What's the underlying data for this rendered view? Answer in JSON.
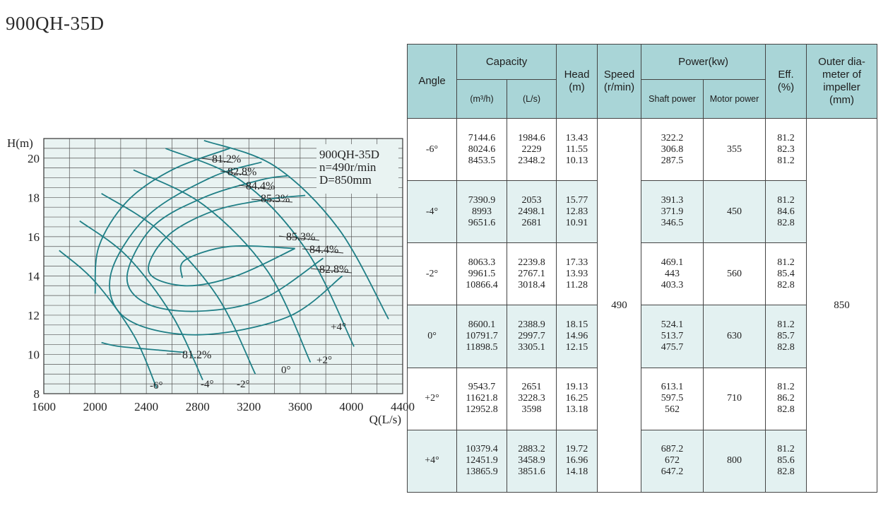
{
  "title": "900QH-35D",
  "chart_data": {
    "type": "line",
    "xlabel": "Q(L/s)",
    "ylabel": "H(m)",
    "xlim": [
      1600,
      4400
    ],
    "ylim": [
      8,
      21
    ],
    "x_ticks": [
      1600,
      2000,
      2400,
      2800,
      3200,
      3600,
      4000,
      4400
    ],
    "y_ticks": [
      8,
      10,
      12,
      14,
      16,
      18,
      20
    ],
    "grid": true,
    "annotation": [
      "900QH-35D",
      "n=490r/min",
      "D=850mm"
    ],
    "series": [
      {
        "name": "-6°",
        "points": [
          [
            1720,
            15.3
          ],
          [
            2000,
            13.7
          ],
          [
            2300,
            11.0
          ],
          [
            2480,
            8.3
          ]
        ]
      },
      {
        "name": "-4°",
        "points": [
          [
            1880,
            16.8
          ],
          [
            2250,
            15.0
          ],
          [
            2600,
            12.0
          ],
          [
            2840,
            8.7
          ]
        ]
      },
      {
        "name": "-2°",
        "points": [
          [
            2050,
            18.2
          ],
          [
            2500,
            16.3
          ],
          [
            2950,
            13.0
          ],
          [
            3250,
            9.0
          ]
        ]
      },
      {
        "name": "0°",
        "points": [
          [
            2300,
            19.4
          ],
          [
            2850,
            17.6
          ],
          [
            3350,
            14.2
          ],
          [
            3680,
            9.6
          ]
        ]
      },
      {
        "name": "+2°",
        "points": [
          [
            2550,
            20.5
          ],
          [
            3150,
            18.8
          ],
          [
            3650,
            15.3
          ],
          [
            4020,
            10.4
          ]
        ]
      },
      {
        "name": "+4°",
        "points": [
          [
            2850,
            20.9
          ],
          [
            3400,
            19.6
          ],
          [
            3900,
            16.4
          ],
          [
            4290,
            11.8
          ]
        ]
      }
    ],
    "efficiency_contours": [
      {
        "label": "81.2%",
        "points": [
          [
            2050,
            10.6
          ],
          [
            2200,
            10.4
          ],
          [
            2530,
            10.2
          ],
          [
            2700,
            10.1
          ]
        ]
      },
      {
        "label": "81.2%",
        "points": [
          [
            2000,
            13.1
          ],
          [
            2030,
            15.5
          ],
          [
            2250,
            17.8
          ],
          [
            2600,
            19.4
          ],
          [
            3050,
            20.5
          ]
        ]
      },
      {
        "label": "82.8%",
        "points": [
          [
            3930,
            14.0
          ],
          [
            3500,
            11.9
          ],
          [
            2800,
            11.0
          ],
          [
            2250,
            11.8
          ],
          [
            2120,
            14.0
          ],
          [
            2400,
            17.0
          ],
          [
            2900,
            19.0
          ],
          [
            3300,
            19.8
          ]
        ]
      },
      {
        "label": "84.4%",
        "points": [
          [
            3780,
            14.9
          ],
          [
            3300,
            12.8
          ],
          [
            2800,
            12.2
          ],
          [
            2400,
            12.6
          ],
          [
            2250,
            14.0
          ],
          [
            2450,
            16.5
          ],
          [
            2850,
            18.0
          ],
          [
            3300,
            18.9
          ],
          [
            3500,
            19.1
          ]
        ]
      },
      {
        "label": "85.3%",
        "points": [
          [
            3560,
            15.4
          ],
          [
            3100,
            14.0
          ],
          [
            2700,
            13.5
          ],
          [
            2420,
            14.2
          ],
          [
            2560,
            16.0
          ],
          [
            2920,
            17.3
          ],
          [
            3350,
            17.9
          ],
          [
            3640,
            18.1
          ]
        ]
      },
      {
        "label": "85.3%",
        "points": [
          [
            3560,
            15.4
          ],
          [
            3050,
            15.5
          ],
          [
            2700,
            14.8
          ],
          [
            2680,
            13.9
          ]
        ]
      }
    ]
  },
  "table": {
    "headers": {
      "angle": "Angle",
      "capacity": "Capacity",
      "cap_m3h": "(m³/h)",
      "cap_ls": "(L/s)",
      "head": "Head\n(m)",
      "speed": "Speed\n(r/min)",
      "power": "Power(kw)",
      "shaft_power": "Shaft power",
      "motor_power": "Motor power",
      "eff": "Eff.\n(%)",
      "outer": "Outer dia-\nmeter of\nimpeller\n(mm)"
    },
    "speed": "490",
    "outer_diameter": "850",
    "rows": [
      {
        "angle": "-6°",
        "m3h": "7144.6\n8024.6\n8453.5",
        "ls": "1984.6\n2229\n2348.2",
        "head": "13.43\n11.55\n10.13",
        "shaft": "322.2\n306.8\n287.5",
        "motor": "355",
        "eff": "81.2\n82.3\n81.2"
      },
      {
        "angle": "-4°",
        "m3h": "7390.9\n8993\n9651.6",
        "ls": "2053\n2498.1\n2681",
        "head": "15.77\n12.83\n10.91",
        "shaft": "391.3\n371.9\n346.5",
        "motor": "450",
        "eff": "81.2\n84.6\n82.8"
      },
      {
        "angle": "-2°",
        "m3h": "8063.3\n9961.5\n10866.4",
        "ls": "2239.8\n2767.1\n3018.4",
        "head": "17.33\n13.93\n11.28",
        "shaft": "469.1\n443\n403.3",
        "motor": "560",
        "eff": "81.2\n85.4\n82.8"
      },
      {
        "angle": "0°",
        "m3h": "8600.1\n10791.7\n11898.5",
        "ls": "2388.9\n2997.7\n3305.1",
        "head": "18.15\n14.96\n12.15",
        "shaft": "524.1\n513.7\n475.7",
        "motor": "630",
        "eff": "81.2\n85.7\n82.8"
      },
      {
        "angle": "+2°",
        "m3h": "9543.7\n11621.8\n12952.8",
        "ls": "2651\n3228.3\n3598",
        "head": "19.13\n16.25\n13.18",
        "shaft": "613.1\n597.5\n562",
        "motor": "710",
        "eff": "81.2\n86.2\n82.8"
      },
      {
        "angle": "+4°",
        "m3h": "10379.4\n12451.9\n13865.9",
        "ls": "2883.2\n3458.9\n3851.6",
        "head": "19.72\n16.96\n14.18",
        "shaft": "687.2\n672\n647.2",
        "motor": "800",
        "eff": "81.2\n85.6\n82.8"
      }
    ]
  },
  "colors": {
    "curve": "#1f7f86",
    "header_bg": "#a9d5d7",
    "row_alt": "#e3f1f1",
    "chart_bg": "#e9f3f2"
  }
}
